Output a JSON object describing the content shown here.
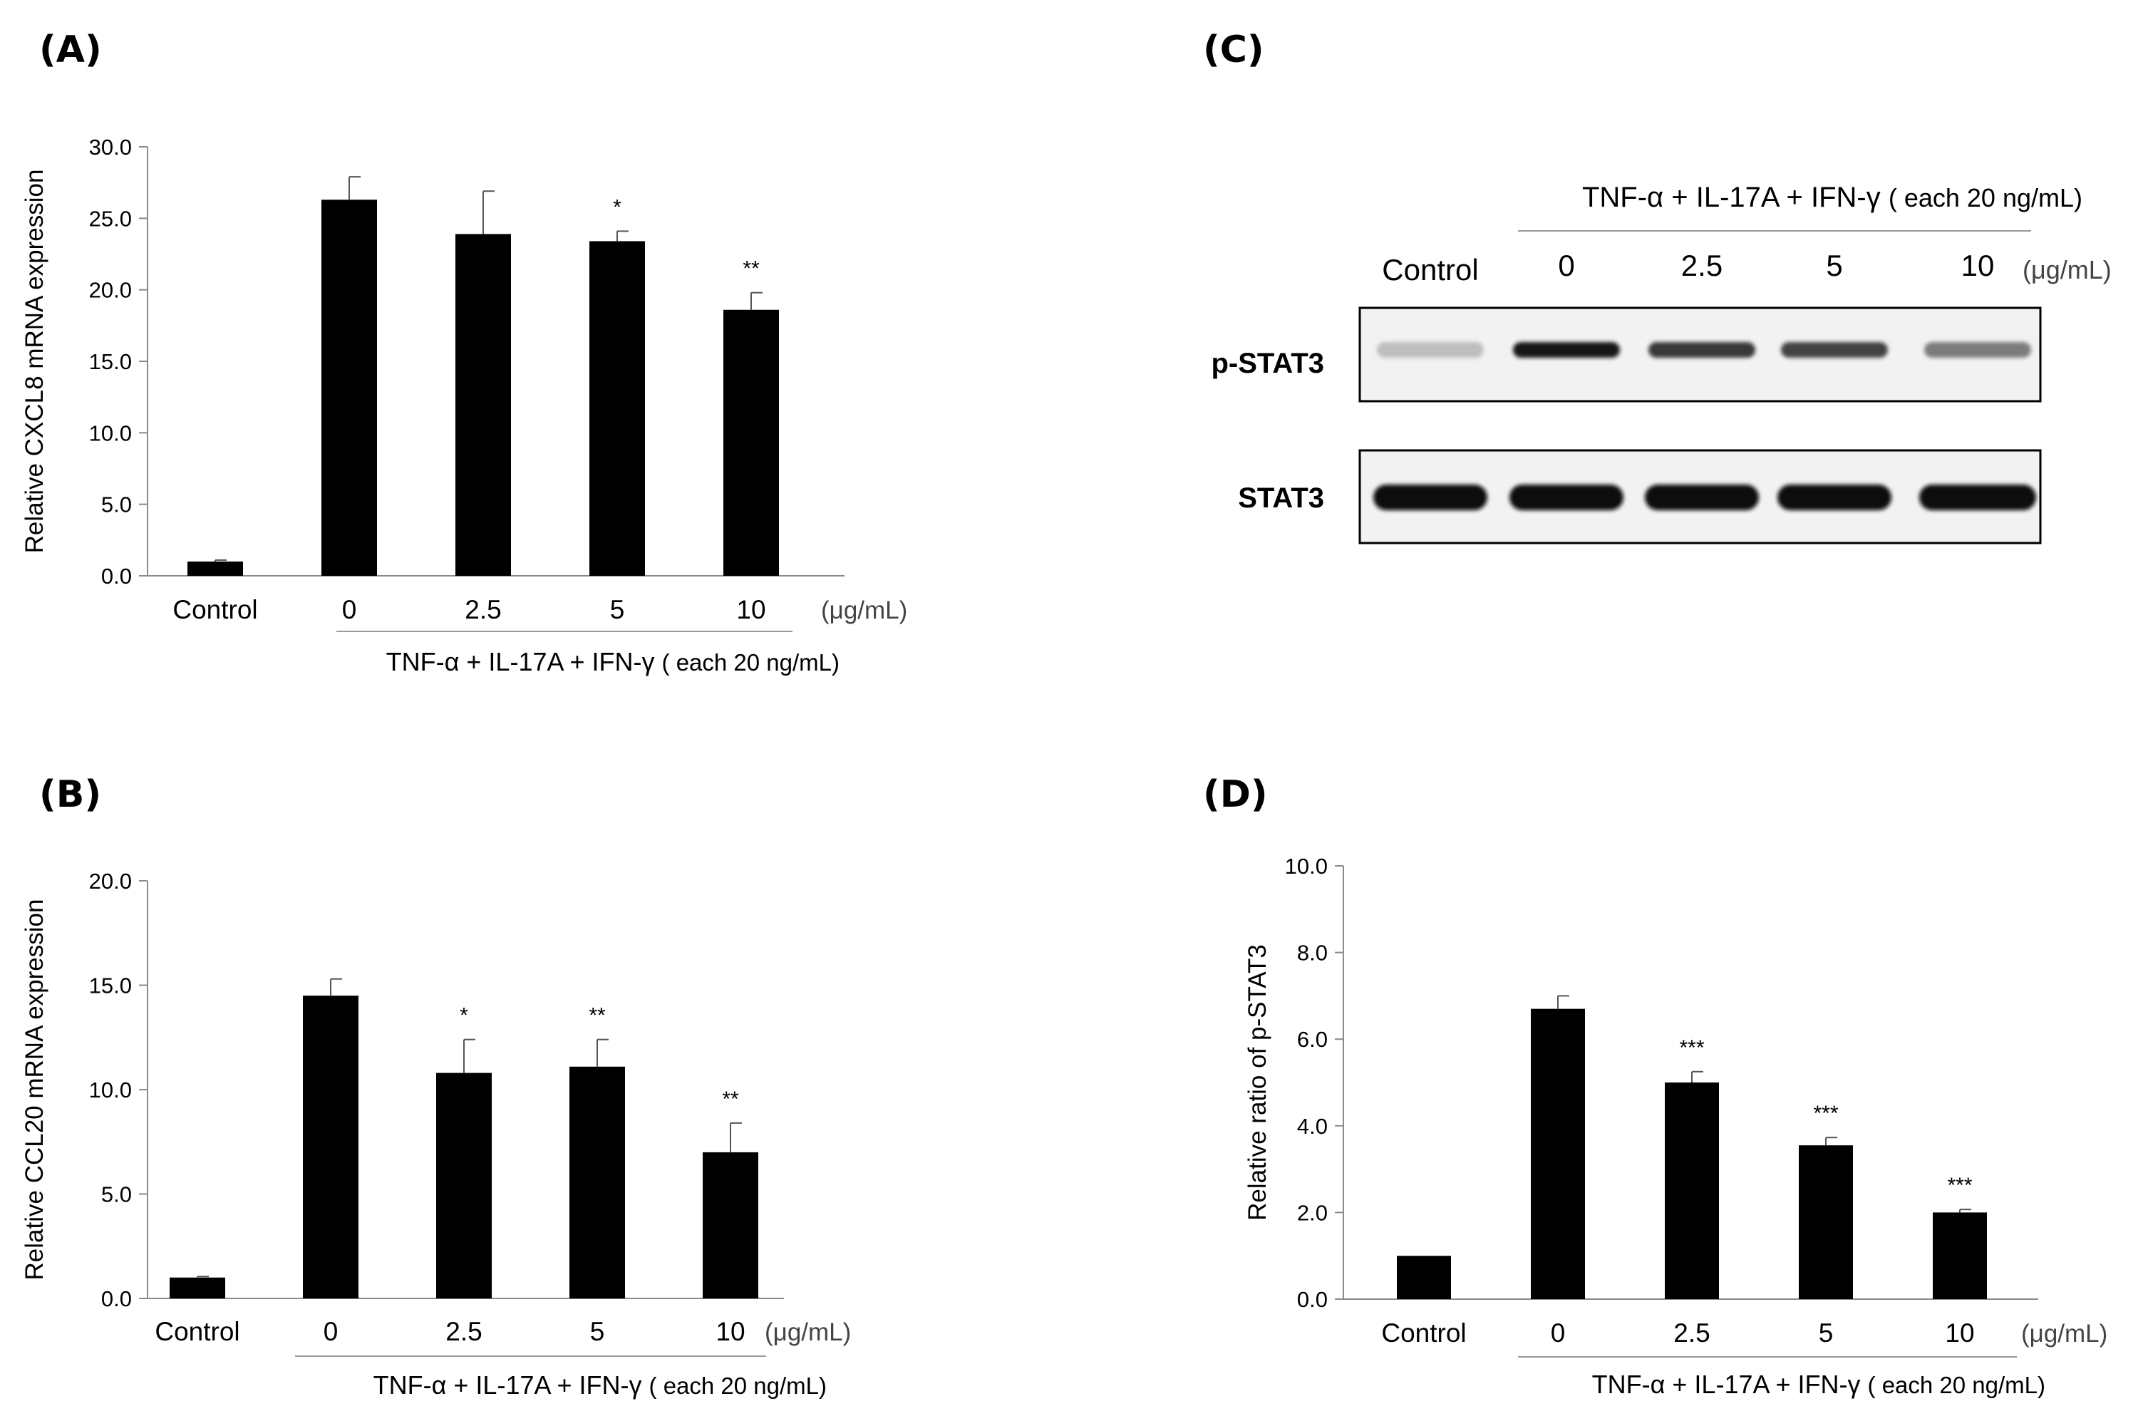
{
  "panels": {
    "A": "(A)",
    "B": "(B)",
    "C": "(C)",
    "D": "(D)"
  },
  "chart_data": [
    {
      "id": "A",
      "type": "bar",
      "ylabel": "Relative CXCL8 mRNA expression",
      "ylim": [
        0,
        30
      ],
      "yticks": [
        0,
        5,
        10,
        15,
        20,
        25,
        30
      ],
      "ytick_labels": [
        "0.0",
        "5.0",
        "10.0",
        "15.0",
        "20.0",
        "25.0",
        "30.0"
      ],
      "categories": [
        "Control",
        "0",
        "2.5",
        "5",
        "10"
      ],
      "values": [
        1.0,
        26.3,
        23.9,
        23.4,
        18.6
      ],
      "errors": [
        0.1,
        1.6,
        3.0,
        0.7,
        1.2
      ],
      "significance": [
        "",
        "",
        "",
        "*",
        "**"
      ],
      "unit": "(μg/mL)",
      "treatment_label": "TNF-α + IL-17A + IFN-γ",
      "treatment_note": "( each 20 ng/mL)"
    },
    {
      "id": "B",
      "type": "bar",
      "ylabel": "Relative CCL20 mRNA expression",
      "ylim": [
        0,
        20
      ],
      "yticks": [
        0,
        5,
        10,
        15,
        20
      ],
      "ytick_labels": [
        "0.0",
        "5.0",
        "10.0",
        "15.0",
        "20.0"
      ],
      "categories": [
        "Control",
        "0",
        "2.5",
        "5",
        "10"
      ],
      "values": [
        1.0,
        14.5,
        10.8,
        11.1,
        7.0
      ],
      "errors": [
        0.05,
        0.8,
        1.6,
        1.3,
        1.4
      ],
      "significance": [
        "",
        "",
        "*",
        "**",
        "**"
      ],
      "unit": "(μg/mL)",
      "treatment_label": "TNF-α + IL-17A + IFN-γ",
      "treatment_note": "( each 20 ng/mL)"
    },
    {
      "id": "D",
      "type": "bar",
      "ylabel": "Relative ratio of p-STAT3",
      "ylim": [
        0,
        10
      ],
      "yticks": [
        0,
        2,
        4,
        6,
        8,
        10
      ],
      "ytick_labels": [
        "0.0",
        "2.0",
        "4.0",
        "6.0",
        "8.0",
        "10.0"
      ],
      "categories": [
        "Control",
        "0",
        "2.5",
        "5",
        "10"
      ],
      "values": [
        1.0,
        6.7,
        5.0,
        3.55,
        2.0
      ],
      "errors": [
        0.0,
        0.3,
        0.25,
        0.18,
        0.07
      ],
      "significance": [
        "",
        "",
        "***",
        "***",
        "***"
      ],
      "unit": "(μg/mL)",
      "treatment_label": "TNF-α + IL-17A + IFN-γ",
      "treatment_note": "( each 20 ng/mL)"
    }
  ],
  "western_blot": {
    "treatment_label": "TNF-α + IL-17A + IFN-γ",
    "treatment_note": "( each 20 ng/mL)",
    "lanes": [
      "Control",
      "0",
      "2.5",
      "5",
      "10"
    ],
    "unit": "(μg/mL)",
    "rows": [
      {
        "label": "p-STAT3",
        "intensities": [
          0.2,
          0.95,
          0.8,
          0.75,
          0.5
        ]
      },
      {
        "label": "STAT3",
        "intensities": [
          1.0,
          1.0,
          1.0,
          1.0,
          1.0
        ]
      }
    ]
  }
}
